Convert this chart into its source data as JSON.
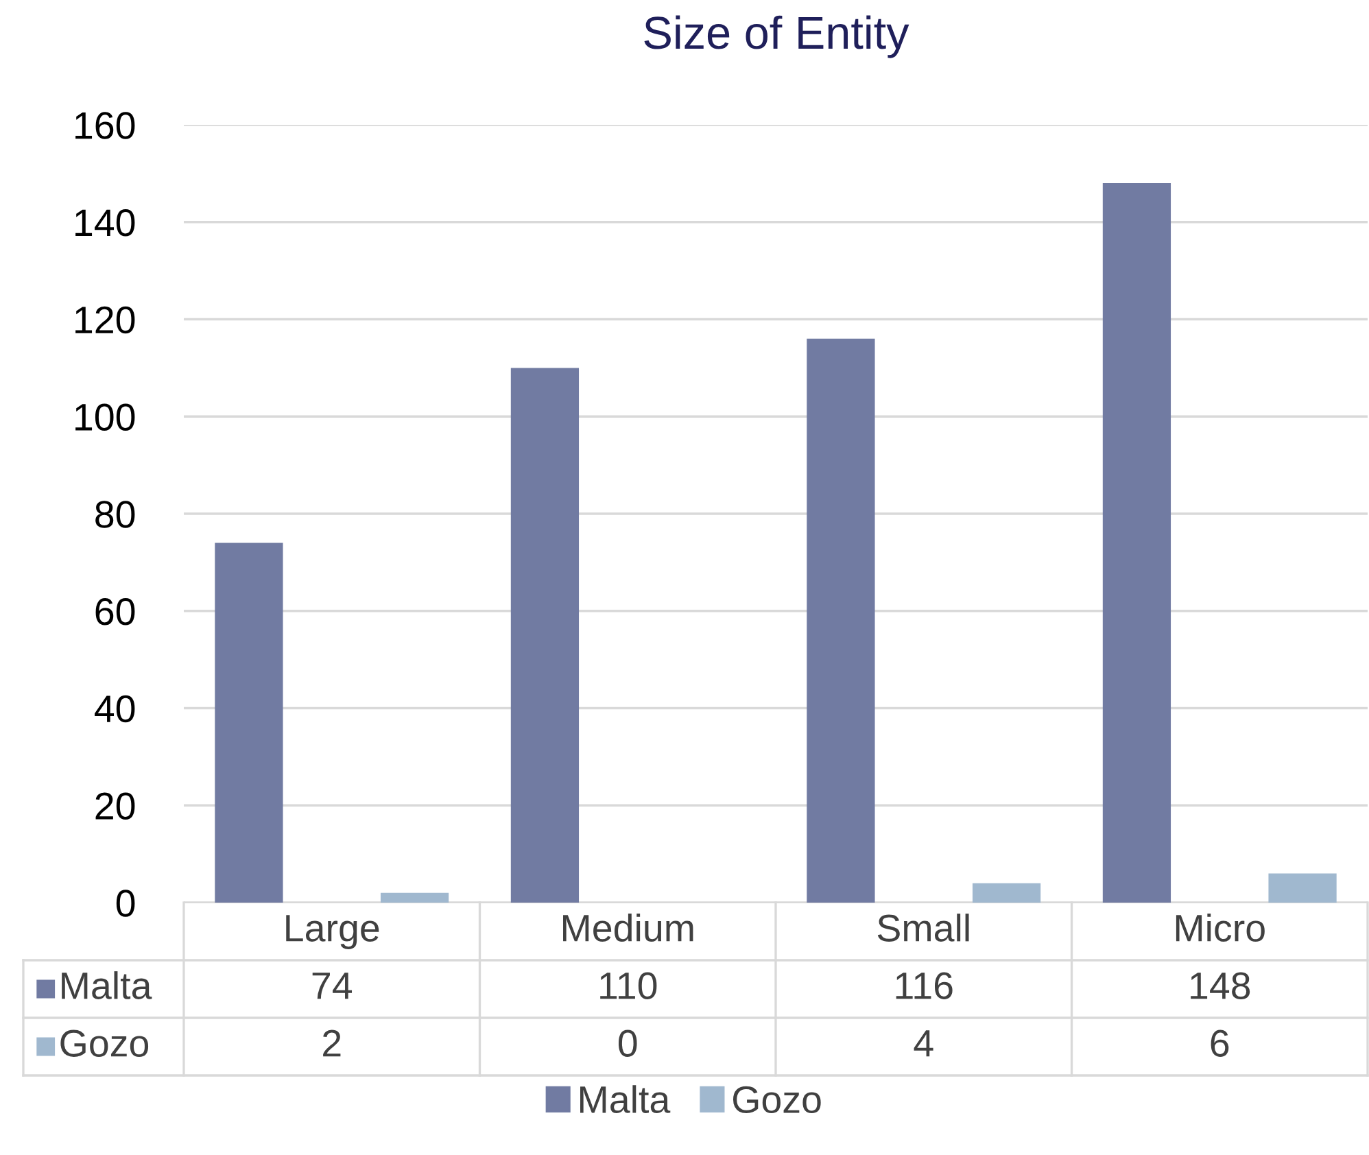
{
  "chart_data": {
    "type": "bar",
    "title": "Size of Entity",
    "categories": [
      "Large",
      "Medium",
      "Small",
      "Micro"
    ],
    "series": [
      {
        "name": "Malta",
        "color": "#717ba2",
        "values": [
          74,
          110,
          116,
          148
        ]
      },
      {
        "name": "Gozo",
        "color": "#a0b8cf",
        "values": [
          2,
          0,
          4,
          6
        ]
      }
    ],
    "ylim": [
      0,
      160
    ],
    "yticks": [
      0,
      20,
      40,
      60,
      80,
      100,
      120,
      140,
      160
    ],
    "grid": "y",
    "legend": "bottom",
    "data_labels": true
  }
}
